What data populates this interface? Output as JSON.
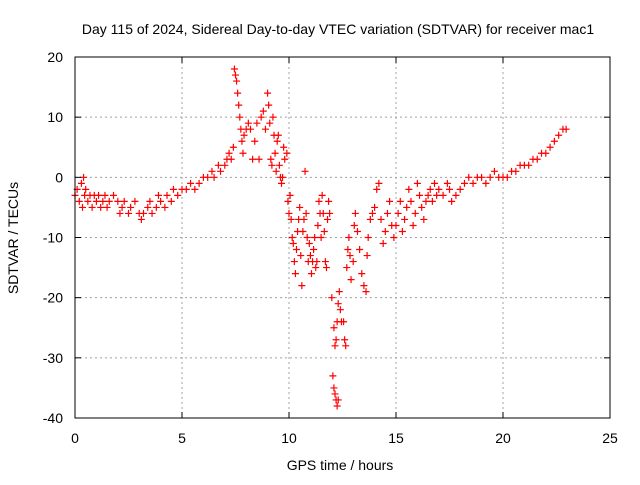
{
  "chart_data": {
    "type": "scatter",
    "title": "Day 115 of 2024, Sidereal Day-to-day VTEC variation (SDTVAR) for receiver mac1",
    "xlabel": "GPS time / hours",
    "ylabel": "SDTVAR / TECUs",
    "xlim": [
      0,
      25
    ],
    "ylim": [
      -40,
      20
    ],
    "xticks": [
      0,
      5,
      10,
      15,
      20,
      25
    ],
    "yticks": [
      -40,
      -30,
      -20,
      -10,
      0,
      10,
      20
    ],
    "grid": true,
    "marker": "+",
    "color": "#ff0000",
    "series": [
      {
        "name": "mac1",
        "points": [
          [
            0.0,
            -3
          ],
          [
            0.1,
            -2
          ],
          [
            0.2,
            -4
          ],
          [
            0.3,
            -1
          ],
          [
            0.35,
            -5
          ],
          [
            0.4,
            0
          ],
          [
            0.45,
            -3
          ],
          [
            0.5,
            -2
          ],
          [
            0.6,
            -4
          ],
          [
            0.7,
            -3
          ],
          [
            0.8,
            -5
          ],
          [
            0.9,
            -3
          ],
          [
            1.0,
            -4
          ],
          [
            1.1,
            -3
          ],
          [
            1.2,
            -5
          ],
          [
            1.3,
            -4
          ],
          [
            1.4,
            -3
          ],
          [
            1.5,
            -5
          ],
          [
            1.6,
            -4
          ],
          [
            1.8,
            -3
          ],
          [
            2.0,
            -4
          ],
          [
            2.1,
            -6
          ],
          [
            2.2,
            -5
          ],
          [
            2.3,
            -4
          ],
          [
            2.5,
            -6
          ],
          [
            2.6,
            -5
          ],
          [
            2.8,
            -4
          ],
          [
            3.0,
            -6
          ],
          [
            3.1,
            -7
          ],
          [
            3.2,
            -6
          ],
          [
            3.4,
            -5
          ],
          [
            3.5,
            -4
          ],
          [
            3.6,
            -6
          ],
          [
            3.8,
            -5
          ],
          [
            3.9,
            -3
          ],
          [
            4.0,
            -4
          ],
          [
            4.2,
            -5
          ],
          [
            4.3,
            -3
          ],
          [
            4.5,
            -4
          ],
          [
            4.6,
            -2
          ],
          [
            4.8,
            -3
          ],
          [
            5.0,
            -2
          ],
          [
            5.2,
            -2
          ],
          [
            5.4,
            -1
          ],
          [
            5.6,
            -2
          ],
          [
            5.8,
            -1
          ],
          [
            6.0,
            0
          ],
          [
            6.2,
            0
          ],
          [
            6.4,
            1
          ],
          [
            6.5,
            0
          ],
          [
            6.7,
            2
          ],
          [
            6.8,
            1
          ],
          [
            7.0,
            2
          ],
          [
            7.1,
            3
          ],
          [
            7.2,
            4
          ],
          [
            7.3,
            3
          ],
          [
            7.4,
            5
          ],
          [
            7.45,
            18
          ],
          [
            7.5,
            17
          ],
          [
            7.55,
            16
          ],
          [
            7.6,
            14
          ],
          [
            7.65,
            12
          ],
          [
            7.7,
            10
          ],
          [
            7.75,
            8
          ],
          [
            7.8,
            6
          ],
          [
            7.85,
            4
          ],
          [
            7.9,
            7
          ],
          [
            8.0,
            8
          ],
          [
            8.1,
            9
          ],
          [
            8.2,
            8
          ],
          [
            8.3,
            3
          ],
          [
            8.4,
            6
          ],
          [
            8.5,
            9
          ],
          [
            8.6,
            3
          ],
          [
            8.7,
            10
          ],
          [
            8.8,
            11
          ],
          [
            8.9,
            8
          ],
          [
            9.0,
            14
          ],
          [
            9.05,
            12
          ],
          [
            9.1,
            9
          ],
          [
            9.15,
            3
          ],
          [
            9.2,
            2
          ],
          [
            9.25,
            10
          ],
          [
            9.3,
            7
          ],
          [
            9.35,
            4
          ],
          [
            9.4,
            1
          ],
          [
            9.45,
            6
          ],
          [
            9.5,
            7
          ],
          [
            9.55,
            2
          ],
          [
            9.6,
            0
          ],
          [
            9.65,
            -1
          ],
          [
            9.7,
            0
          ],
          [
            9.75,
            5
          ],
          [
            9.8,
            3
          ],
          [
            9.9,
            4
          ],
          [
            9.95,
            -4
          ],
          [
            10.0,
            -6
          ],
          [
            10.05,
            -3
          ],
          [
            10.1,
            -7
          ],
          [
            10.15,
            -10
          ],
          [
            10.2,
            -11
          ],
          [
            10.25,
            -14
          ],
          [
            10.3,
            -16
          ],
          [
            10.35,
            -12
          ],
          [
            10.4,
            -9
          ],
          [
            10.45,
            -7
          ],
          [
            10.5,
            -5
          ],
          [
            10.55,
            -13
          ],
          [
            10.6,
            -18
          ],
          [
            10.65,
            -9
          ],
          [
            10.7,
            -7
          ],
          [
            10.75,
            1
          ],
          [
            10.8,
            -6
          ],
          [
            10.85,
            -10
          ],
          [
            10.9,
            -14
          ],
          [
            10.95,
            -11
          ],
          [
            11.0,
            -13
          ],
          [
            11.05,
            -16
          ],
          [
            11.1,
            -14
          ],
          [
            11.15,
            -12
          ],
          [
            11.2,
            -10
          ],
          [
            11.25,
            -15
          ],
          [
            11.3,
            -14
          ],
          [
            11.35,
            -8
          ],
          [
            11.4,
            -4
          ],
          [
            11.45,
            -6
          ],
          [
            11.5,
            -10
          ],
          [
            11.55,
            -3
          ],
          [
            11.6,
            -6
          ],
          [
            11.65,
            -9
          ],
          [
            11.7,
            -14
          ],
          [
            11.75,
            -15
          ],
          [
            11.8,
            -7
          ],
          [
            11.85,
            -4
          ],
          [
            11.9,
            -6
          ],
          [
            12.0,
            -20
          ],
          [
            12.1,
            -25
          ],
          [
            12.15,
            -28
          ],
          [
            12.2,
            -27
          ],
          [
            12.25,
            -24
          ],
          [
            12.3,
            -21
          ],
          [
            12.35,
            -19
          ],
          [
            12.4,
            -22
          ],
          [
            12.45,
            -24
          ],
          [
            12.05,
            -33
          ],
          [
            12.1,
            -35
          ],
          [
            12.15,
            -36
          ],
          [
            12.2,
            -37
          ],
          [
            12.25,
            -38
          ],
          [
            12.3,
            -37
          ],
          [
            12.55,
            -24
          ],
          [
            12.6,
            -27
          ],
          [
            12.65,
            -28
          ],
          [
            12.7,
            -15
          ],
          [
            12.75,
            -12
          ],
          [
            12.8,
            -10
          ],
          [
            12.85,
            -13
          ],
          [
            12.9,
            -17
          ],
          [
            13.0,
            -14
          ],
          [
            13.05,
            -8
          ],
          [
            13.1,
            -6
          ],
          [
            13.2,
            -9
          ],
          [
            13.3,
            -12
          ],
          [
            13.4,
            -16
          ],
          [
            13.5,
            -18
          ],
          [
            13.6,
            -19
          ],
          [
            13.65,
            -13
          ],
          [
            13.7,
            -10
          ],
          [
            13.8,
            -7
          ],
          [
            13.9,
            -6
          ],
          [
            14.0,
            -5
          ],
          [
            14.1,
            -2
          ],
          [
            14.2,
            -1
          ],
          [
            14.3,
            -7
          ],
          [
            14.4,
            -11
          ],
          [
            14.5,
            -9
          ],
          [
            14.6,
            -6
          ],
          [
            14.7,
            -4
          ],
          [
            14.8,
            -8
          ],
          [
            14.9,
            -10
          ],
          [
            15.0,
            -8
          ],
          [
            15.1,
            -6
          ],
          [
            15.2,
            -4
          ],
          [
            15.3,
            -9
          ],
          [
            15.4,
            -7
          ],
          [
            15.5,
            -5
          ],
          [
            15.6,
            -2
          ],
          [
            15.7,
            -4
          ],
          [
            15.8,
            -8
          ],
          [
            15.9,
            -6
          ],
          [
            16.0,
            -1
          ],
          [
            16.1,
            -3
          ],
          [
            16.2,
            -5
          ],
          [
            16.3,
            -7
          ],
          [
            16.4,
            -4
          ],
          [
            16.5,
            -3
          ],
          [
            16.6,
            -2
          ],
          [
            16.7,
            -4
          ],
          [
            16.8,
            -1
          ],
          [
            16.9,
            -3
          ],
          [
            17.0,
            -2
          ],
          [
            17.2,
            -3
          ],
          [
            17.4,
            -1
          ],
          [
            17.5,
            -2
          ],
          [
            17.6,
            -4
          ],
          [
            17.8,
            -3
          ],
          [
            18.0,
            -2
          ],
          [
            18.2,
            -1
          ],
          [
            18.4,
            0
          ],
          [
            18.6,
            -1
          ],
          [
            18.8,
            0
          ],
          [
            19.0,
            0
          ],
          [
            19.2,
            -1
          ],
          [
            19.4,
            0
          ],
          [
            19.6,
            1
          ],
          [
            19.8,
            0
          ],
          [
            20.0,
            0
          ],
          [
            20.2,
            0
          ],
          [
            20.4,
            1
          ],
          [
            20.6,
            1
          ],
          [
            20.8,
            2
          ],
          [
            21.0,
            2
          ],
          [
            21.2,
            2
          ],
          [
            21.4,
            3
          ],
          [
            21.6,
            3
          ],
          [
            21.8,
            4
          ],
          [
            22.0,
            4
          ],
          [
            22.2,
            5
          ],
          [
            22.4,
            6
          ],
          [
            22.6,
            7
          ],
          [
            22.8,
            8
          ],
          [
            22.95,
            8
          ]
        ]
      }
    ]
  }
}
